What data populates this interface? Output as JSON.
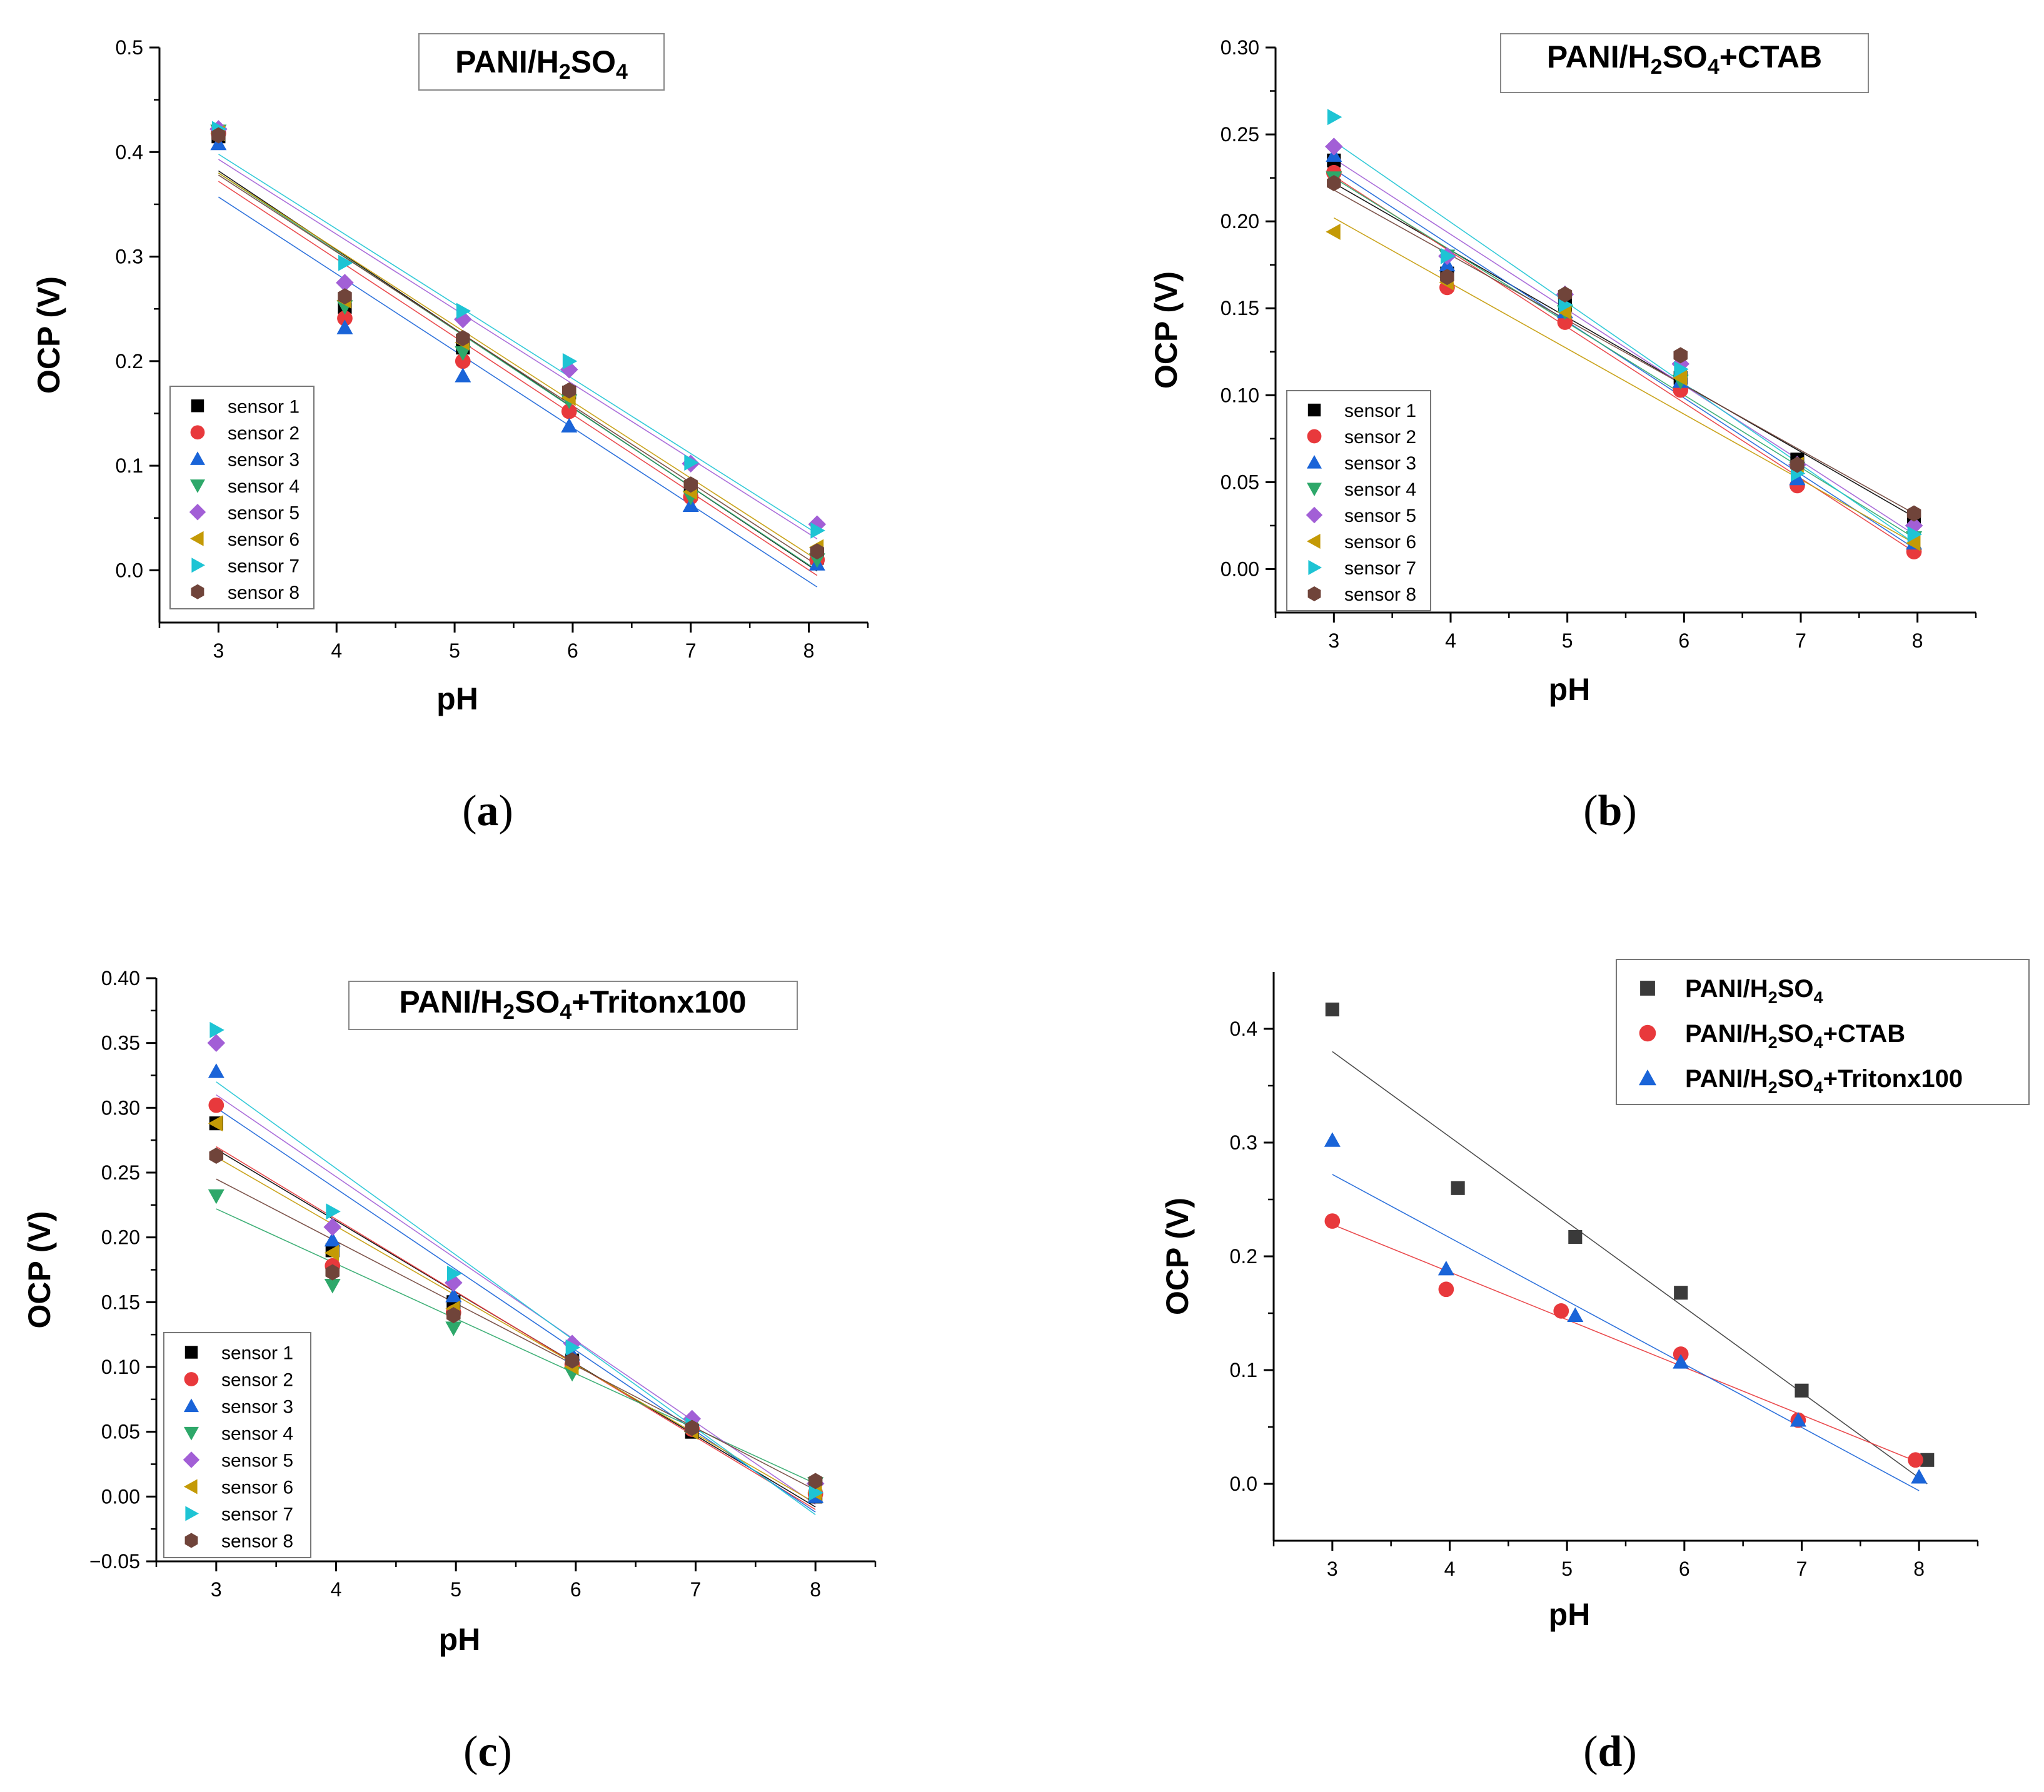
{
  "colors": {
    "sensor 1": "#000000",
    "sensor 1 (gray)": "#3a3a3a",
    "sensor 2": "#e8393c",
    "sensor 3": "#1a64d8",
    "sensor 4": "#2ea86a",
    "sensor 5": "#a25fd6",
    "sensor 6": "#c49a06",
    "sensor 7": "#1ec4d4",
    "sensor 8": "#70443a"
  },
  "chart_data": [
    {
      "id": "a",
      "type": "scatter",
      "caption_letter": "a",
      "title_parts": [
        "PANI/H",
        "2",
        "SO",
        "4",
        ""
      ],
      "xlabel": "pH",
      "ylabel": "OCP (V)",
      "xlim": [
        2.5,
        8.5
      ],
      "ylim": [
        -0.05,
        0.5
      ],
      "xticks": [
        "3",
        "4",
        "5",
        "6",
        "7",
        "8"
      ],
      "yticks": [
        "0.0",
        "0.1",
        "0.2",
        "0.3",
        "0.4",
        "0.5"
      ],
      "x": [
        3.0,
        4.07,
        5.07,
        5.97,
        7.0,
        8.07
      ],
      "series": [
        {
          "name": "sensor 1",
          "marker": "square",
          "values": [
            0.415,
            0.252,
            0.213,
            0.17,
            0.078,
            0.012
          ],
          "fit": [
            0.382,
            -0.0008
          ]
        },
        {
          "name": "sensor 2",
          "marker": "circle",
          "values": [
            0.418,
            0.241,
            0.2,
            0.152,
            0.07,
            0.01
          ],
          "fit": [
            0.372,
            -0.005
          ]
        },
        {
          "name": "sensor 3",
          "marker": "triangle-up",
          "values": [
            0.408,
            0.232,
            0.186,
            0.138,
            0.062,
            0.006
          ],
          "fit": [
            0.357,
            -0.016
          ]
        },
        {
          "name": "sensor 4",
          "marker": "triangle-down",
          "values": [
            0.42,
            0.252,
            0.208,
            0.162,
            0.07,
            0.01
          ],
          "fit": [
            0.38,
            0.0
          ]
        },
        {
          "name": "sensor 5",
          "marker": "diamond",
          "values": [
            0.422,
            0.275,
            0.24,
            0.192,
            0.102,
            0.044
          ],
          "fit": [
            0.393,
            0.03
          ]
        },
        {
          "name": "sensor 6",
          "marker": "triangle-left",
          "values": [
            0.418,
            0.258,
            0.218,
            0.165,
            0.075,
            0.022
          ],
          "fit": [
            0.38,
            0.01
          ]
        },
        {
          "name": "sensor 7",
          "marker": "triangle-right",
          "values": [
            0.422,
            0.294,
            0.248,
            0.2,
            0.103,
            0.038
          ],
          "fit": [
            0.398,
            0.035
          ]
        },
        {
          "name": "sensor 8",
          "marker": "hexagon",
          "values": [
            0.416,
            0.262,
            0.222,
            0.172,
            0.082,
            0.018
          ],
          "fit": [
            0.378,
            0.005
          ]
        }
      ]
    },
    {
      "id": "b",
      "type": "scatter",
      "caption_letter": "b",
      "title_parts": [
        "PANI/H",
        "2",
        "SO",
        "4",
        "+CTAB"
      ],
      "xlabel": "pH",
      "ylabel": "OCP (V)",
      "xlim": [
        2.5,
        8.5
      ],
      "ylim": [
        -0.025,
        0.3
      ],
      "xticks": [
        "3",
        "4",
        "5",
        "6",
        "7",
        "8"
      ],
      "yticks": [
        "0.00",
        "0.05",
        "0.10",
        "0.15",
        "0.20",
        "0.25",
        "0.30"
      ],
      "x": [
        3.0,
        3.97,
        4.98,
        5.97,
        6.97,
        7.97
      ],
      "series": [
        {
          "name": "sensor 1",
          "marker": "square",
          "values": [
            0.235,
            0.17,
            0.152,
            0.11,
            0.063,
            0.03
          ],
          "fit": [
            0.222,
            0.03
          ]
        },
        {
          "name": "sensor 2",
          "marker": "circle",
          "values": [
            0.228,
            0.162,
            0.142,
            0.103,
            0.048,
            0.01
          ],
          "fit": [
            0.226,
            0.01
          ]
        },
        {
          "name": "sensor 3",
          "marker": "triangle-up",
          "values": [
            0.238,
            0.175,
            0.148,
            0.108,
            0.052,
            0.015
          ],
          "fit": [
            0.23,
            0.012
          ]
        },
        {
          "name": "sensor 4",
          "marker": "triangle-down",
          "values": [
            0.225,
            0.18,
            0.148,
            0.108,
            0.058,
            0.018
          ],
          "fit": [
            0.225,
            0.018
          ]
        },
        {
          "name": "sensor 5",
          "marker": "diamond",
          "values": [
            0.243,
            0.18,
            0.158,
            0.118,
            0.06,
            0.025
          ],
          "fit": [
            0.236,
            0.02
          ]
        },
        {
          "name": "sensor 6",
          "marker": "triangle-left",
          "values": [
            0.194,
            0.165,
            0.148,
            0.11,
            0.06,
            0.015
          ],
          "fit": [
            0.202,
            0.015
          ]
        },
        {
          "name": "sensor 7",
          "marker": "triangle-right",
          "values": [
            0.26,
            0.18,
            0.152,
            0.115,
            0.055,
            0.02
          ],
          "fit": [
            0.246,
            0.015
          ]
        },
        {
          "name": "sensor 8",
          "marker": "hexagon",
          "values": [
            0.222,
            0.168,
            0.158,
            0.123,
            0.06,
            0.032
          ],
          "fit": [
            0.218,
            0.032
          ]
        }
      ]
    },
    {
      "id": "c",
      "type": "scatter",
      "caption_letter": "c",
      "title_parts": [
        "PANI/H",
        "2",
        "SO",
        "4",
        "+Tritonx100"
      ],
      "xlabel": "pH",
      "ylabel": "OCP (V)",
      "xlim": [
        2.5,
        8.5
      ],
      "ylim": [
        -0.05,
        0.4
      ],
      "xticks": [
        "3",
        "4",
        "5",
        "6",
        "7",
        "8"
      ],
      "yticks": [
        "−0.05",
        "0.00",
        "0.05",
        "0.10",
        "0.15",
        "0.20",
        "0.25",
        "0.30",
        "0.35",
        "0.40"
      ],
      "x": [
        3.0,
        3.97,
        4.98,
        5.97,
        6.97,
        8.0
      ],
      "series": [
        {
          "name": "sensor 1",
          "marker": "square",
          "values": [
            0.288,
            0.19,
            0.15,
            0.105,
            0.05,
            0.0
          ],
          "fit": [
            0.268,
            -0.008
          ]
        },
        {
          "name": "sensor 2",
          "marker": "circle",
          "values": [
            0.302,
            0.178,
            0.142,
            0.102,
            0.052,
            0.002
          ],
          "fit": [
            0.27,
            -0.01
          ]
        },
        {
          "name": "sensor 3",
          "marker": "triangle-up",
          "values": [
            0.328,
            0.198,
            0.155,
            0.11,
            0.055,
            0.0
          ],
          "fit": [
            0.3,
            -0.012
          ]
        },
        {
          "name": "sensor 4",
          "marker": "triangle-down",
          "values": [
            0.232,
            0.163,
            0.13,
            0.095,
            0.055,
            0.01
          ],
          "fit": [
            0.222,
            0.01
          ]
        },
        {
          "name": "sensor 5",
          "marker": "diamond",
          "values": [
            0.35,
            0.208,
            0.165,
            0.118,
            0.06,
            0.01
          ],
          "fit": [
            0.31,
            -0.006
          ]
        },
        {
          "name": "sensor 6",
          "marker": "triangle-left",
          "values": [
            0.288,
            0.188,
            0.145,
            0.1,
            0.05,
            0.003
          ],
          "fit": [
            0.262,
            -0.005
          ]
        },
        {
          "name": "sensor 7",
          "marker": "triangle-right",
          "values": [
            0.36,
            0.22,
            0.172,
            0.115,
            0.055,
            0.003
          ],
          "fit": [
            0.32,
            -0.014
          ]
        },
        {
          "name": "sensor 8",
          "marker": "hexagon",
          "values": [
            0.263,
            0.173,
            0.14,
            0.105,
            0.053,
            0.012
          ],
          "fit": [
            0.245,
            0.005
          ]
        }
      ]
    },
    {
      "id": "d",
      "type": "scatter",
      "caption_letter": "d",
      "xlabel": "pH",
      "ylabel": "OCP (V)",
      "xlim": [
        2.5,
        8.5
      ],
      "ylim": [
        -0.05,
        0.45
      ],
      "xticks": [
        "3",
        "4",
        "5",
        "6",
        "7",
        "8"
      ],
      "yticks": [
        "0.0",
        "0.1",
        "0.2",
        "0.3",
        "0.4"
      ],
      "series": [
        {
          "name_parts": [
            "PANI/H",
            "2",
            "SO",
            "4",
            ""
          ],
          "marker": "square",
          "color": "#3a3a3a",
          "x": [
            3.0,
            4.07,
            5.07,
            5.97,
            7.0,
            8.07
          ],
          "values": [
            0.417,
            0.26,
            0.217,
            0.168,
            0.082,
            0.021
          ],
          "fit": [
            0.38,
            0.0
          ]
        },
        {
          "name_parts": [
            "PANI/H",
            "2",
            "SO",
            "4",
            "+CTAB"
          ],
          "marker": "circle",
          "color": "#e8393c",
          "x": [
            3.0,
            3.97,
            4.95,
            5.97,
            6.97,
            7.97
          ],
          "values": [
            0.231,
            0.171,
            0.152,
            0.114,
            0.056,
            0.021
          ],
          "fit": [
            0.228,
            0.02
          ]
        },
        {
          "name_parts": [
            "PANI/H",
            "2",
            "SO",
            "4",
            "+Tritonx100"
          ],
          "marker": "triangle-up",
          "color": "#1a64d8",
          "x": [
            3.0,
            3.97,
            5.07,
            5.97,
            6.97,
            8.0
          ],
          "values": [
            0.302,
            0.189,
            0.148,
            0.107,
            0.056,
            0.006
          ],
          "fit": [
            0.272,
            -0.006
          ]
        }
      ]
    }
  ]
}
